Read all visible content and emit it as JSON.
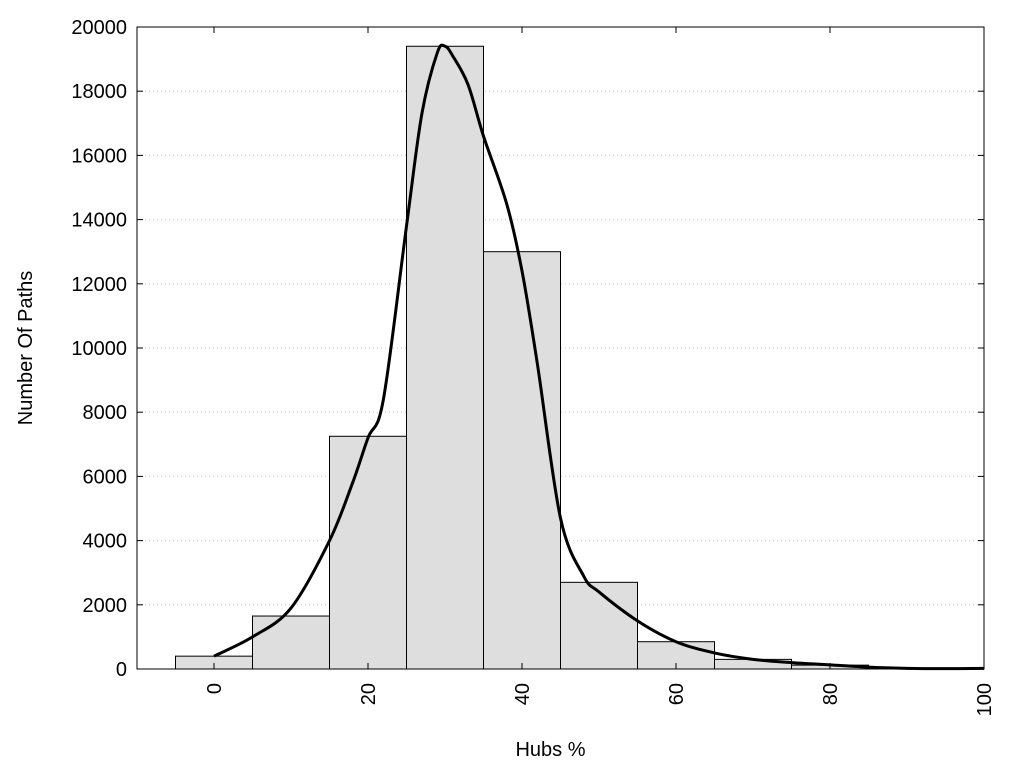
{
  "chart_data": {
    "type": "bar",
    "subtype": "histogram",
    "xlabel": "Hubs %",
    "ylabel": "Number Of Paths",
    "xlim": [
      -10,
      100
    ],
    "ylim": [
      0,
      20000
    ],
    "x_ticks": [
      "0",
      "20",
      "40",
      "60",
      "80",
      "100"
    ],
    "y_ticks": [
      "0",
      "2000",
      "4000",
      "6000",
      "8000",
      "10000",
      "12000",
      "14000",
      "16000",
      "18000",
      "20000"
    ],
    "grid": "horizontal dotted",
    "bins": [
      {
        "x0": -5,
        "x1": 5,
        "value": 400
      },
      {
        "x0": 5,
        "x1": 15,
        "value": 1650
      },
      {
        "x0": 15,
        "x1": 25,
        "value": 7250
      },
      {
        "x0": 25,
        "x1": 35,
        "value": 19400
      },
      {
        "x0": 35,
        "x1": 45,
        "value": 13000
      },
      {
        "x0": 45,
        "x1": 55,
        "value": 2700
      },
      {
        "x0": 55,
        "x1": 65,
        "value": 850
      },
      {
        "x0": 65,
        "x1": 75,
        "value": 300
      },
      {
        "x0": 75,
        "x1": 85,
        "value": 120
      },
      {
        "x0": 85,
        "x1": 95,
        "value": 30
      },
      {
        "x0": 95,
        "x1": 105,
        "value": 10
      }
    ],
    "density_curve": {
      "x": [
        0,
        5,
        10,
        15,
        18,
        20,
        22,
        25,
        27,
        29,
        30,
        31,
        33,
        35,
        38,
        40,
        42,
        45,
        48,
        50,
        55,
        60,
        65,
        70,
        75,
        80,
        85,
        90,
        95,
        100
      ],
      "y": [
        400,
        1000,
        1900,
        4000,
        5800,
        7200,
        8400,
        13800,
        17300,
        19200,
        19400,
        19100,
        18200,
        16600,
        14500,
        12400,
        9500,
        4700,
        2900,
        2400,
        1500,
        850,
        500,
        300,
        200,
        130,
        60,
        20,
        10,
        20
      ]
    },
    "colors": {
      "bar_fill": "#dedede",
      "bar_stroke": "#000000",
      "curve": "#000000",
      "grid": "#c8c8c8"
    }
  }
}
